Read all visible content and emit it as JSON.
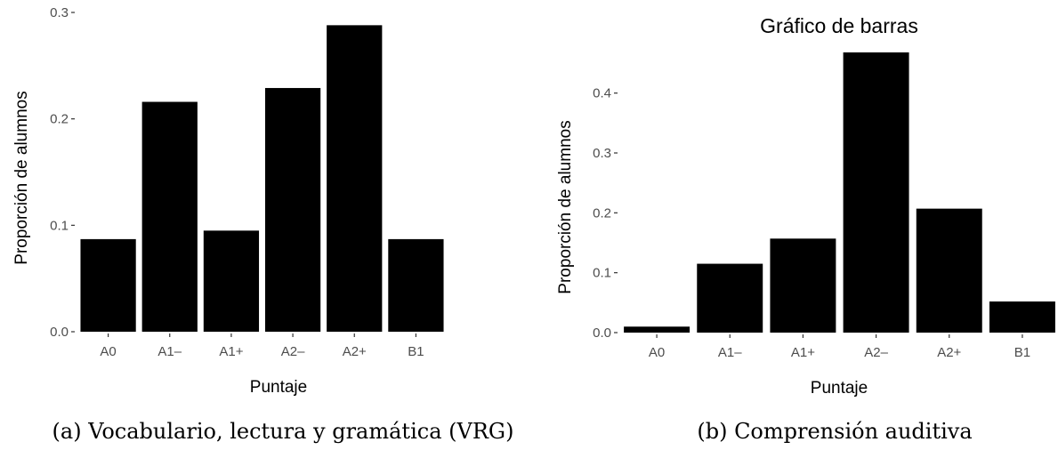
{
  "chart_data": [
    {
      "type": "bar",
      "title": "",
      "xlabel": "Puntaje",
      "ylabel": "Proporción de alumnos",
      "categories": [
        "A0",
        "A1–",
        "A1+",
        "A2–",
        "A2+",
        "B1"
      ],
      "values": [
        0.087,
        0.216,
        0.095,
        0.229,
        0.288,
        0.087
      ],
      "ylim": [
        0,
        0.3
      ],
      "yticks": [
        "0.0",
        "0.1",
        "0.2",
        "0.3"
      ],
      "caption": "(a) Vocabulario, lectura y gramática (VRG)",
      "bar_color": "#000000",
      "grid": false
    },
    {
      "type": "bar",
      "title": "Gráfico de barras",
      "xlabel": "Puntaje",
      "ylabel": "Proporción de alumnos",
      "categories": [
        "A0",
        "A1–",
        "A1+",
        "A2–",
        "A2+",
        "B1"
      ],
      "values": [
        0.01,
        0.115,
        0.157,
        0.468,
        0.207,
        0.052
      ],
      "ylim": [
        0,
        0.45
      ],
      "yticks": [
        "0.0",
        "0.1",
        "0.2",
        "0.3",
        "0.4"
      ],
      "caption": "(b) Comprensión auditiva",
      "bar_color": "#000000",
      "grid": false
    }
  ]
}
